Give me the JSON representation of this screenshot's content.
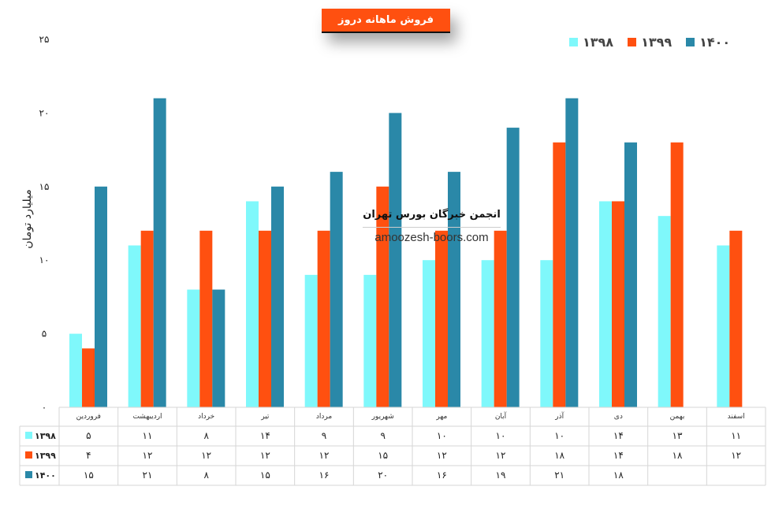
{
  "chart_data": {
    "type": "bar",
    "title": "فروش ماهانه دروز",
    "xlabel": "",
    "ylabel": "میلیارد تومان",
    "ylim": [
      0,
      25
    ],
    "yticks": [
      0,
      5,
      10,
      15,
      20,
      25
    ],
    "ytick_labels": [
      "۰",
      "۵",
      "۱۰",
      "۱۵",
      "۲۰",
      "۲۵"
    ],
    "legend_position": "top-right",
    "categories": [
      "فروردین",
      "اردیبهشت",
      "خرداد",
      "تیر",
      "مرداد",
      "شهریور",
      "مهر",
      "آبان",
      "آذر",
      "دی",
      "بهمن",
      "اسفند"
    ],
    "series": [
      {
        "name": "۱۳۹۸",
        "color": "#7ff8fb",
        "values": [
          5,
          11,
          8,
          14,
          9,
          9,
          10,
          10,
          10,
          14,
          13,
          11
        ],
        "labels": [
          "۵",
          "۱۱",
          "۸",
          "۱۴",
          "۹",
          "۹",
          "۱۰",
          "۱۰",
          "۱۰",
          "۱۴",
          "۱۳",
          "۱۱"
        ]
      },
      {
        "name": "۱۳۹۹",
        "color": "#ff5010",
        "values": [
          4,
          12,
          12,
          12,
          12,
          15,
          12,
          12,
          18,
          14,
          18,
          12
        ],
        "labels": [
          "۴",
          "۱۲",
          "۱۲",
          "۱۲",
          "۱۲",
          "۱۵",
          "۱۲",
          "۱۲",
          "۱۸",
          "۱۴",
          "۱۸",
          "۱۲"
        ]
      },
      {
        "name": "۱۴۰۰",
        "color": "#2a88a8",
        "values": [
          15,
          21,
          8,
          15,
          16,
          20,
          16,
          19,
          21,
          18,
          null,
          null
        ],
        "labels": [
          "۱۵",
          "۲۱",
          "۸",
          "۱۵",
          "۱۶",
          "۲۰",
          "۱۶",
          "۱۹",
          "۲۱",
          "۱۸",
          "",
          ""
        ]
      }
    ],
    "grid": false,
    "data_table": true
  },
  "watermark": {
    "line1": "انجمن خبرگان بورس تهران",
    "line2": "amoozesh-boors.com"
  }
}
